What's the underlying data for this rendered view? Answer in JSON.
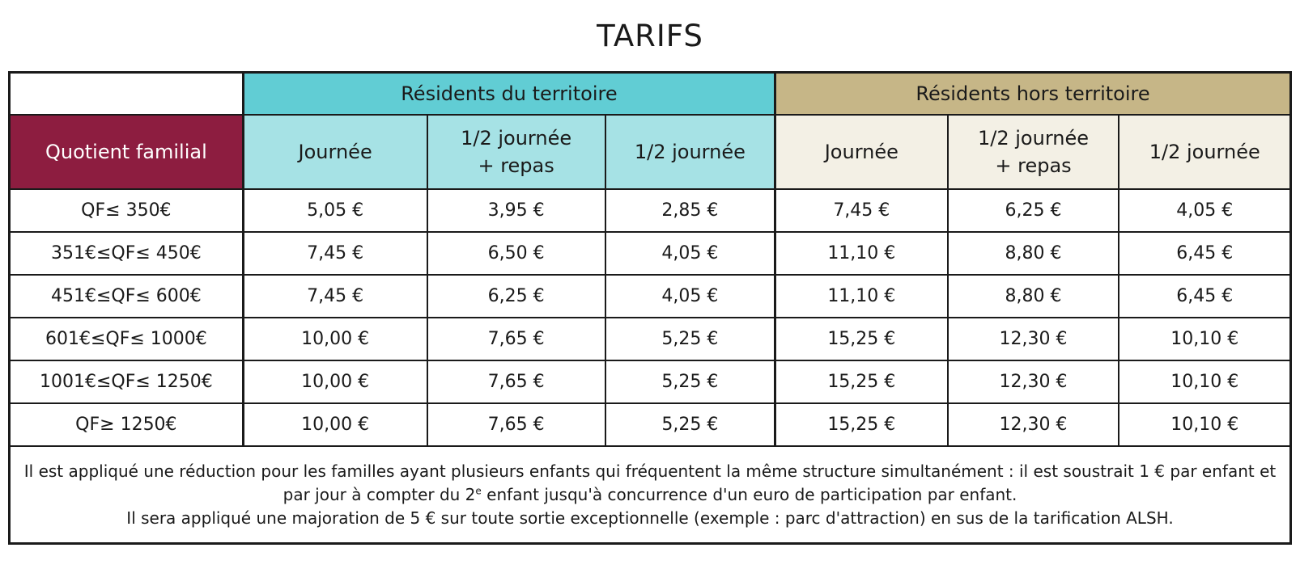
{
  "title": "TARIFS",
  "table": {
    "groups": {
      "resident": "Résidents du territoire",
      "non_resident": "Résidents hors territoire"
    },
    "qf_header": "Quotient familial",
    "subheaders": {
      "day": "Journée",
      "half_meal_line1": "1/2 journée",
      "half_meal_line2": "+ repas",
      "half": "1/2 journée"
    },
    "rows": [
      {
        "qf": "QF≤ 350€",
        "values": [
          "5,05 €",
          "3,95 €",
          "2,85 €",
          "7,45 €",
          "6,25 €",
          "4,05 €"
        ]
      },
      {
        "qf": "351€≤QF≤ 450€",
        "values": [
          "7,45 €",
          "6,50 €",
          "4,05 €",
          "11,10 €",
          "8,80 €",
          "6,45 €"
        ]
      },
      {
        "qf": "451€≤QF≤ 600€",
        "values": [
          "7,45 €",
          "6,25 €",
          "4,05 €",
          "11,10 €",
          "8,80 €",
          "6,45 €"
        ]
      },
      {
        "qf": "601€≤QF≤ 1000€",
        "values": [
          "10,00 €",
          "7,65 €",
          "5,25 €",
          "15,25 €",
          "12,30 €",
          "10,10 €"
        ]
      },
      {
        "qf": "1001€≤QF≤ 1250€",
        "values": [
          "10,00 €",
          "7,65 €",
          "5,25 €",
          "15,25 €",
          "12,30 €",
          "10,10 €"
        ]
      },
      {
        "qf": "QF≥ 1250€",
        "values": [
          "10,00 €",
          "7,65 €",
          "5,25 €",
          "15,25 €",
          "12,30 €",
          "10,10 €"
        ]
      }
    ]
  },
  "notes": {
    "line1_a": "Il est appliqué une réduction pour les familles ayant plusieurs enfants qui fréquentent la même structure simultanément : il est soustrait 1 € par enfant et par jour à compter du 2",
    "line1_sup": "e",
    "line1_b": " enfant jusqu'à concurrence d'un euro de participation par enfant.",
    "line2": "Il sera appliqué une majoration de 5 € sur toute sortie exceptionnelle (exemple : parc d'attraction) en sus de la tarification ALSH."
  }
}
